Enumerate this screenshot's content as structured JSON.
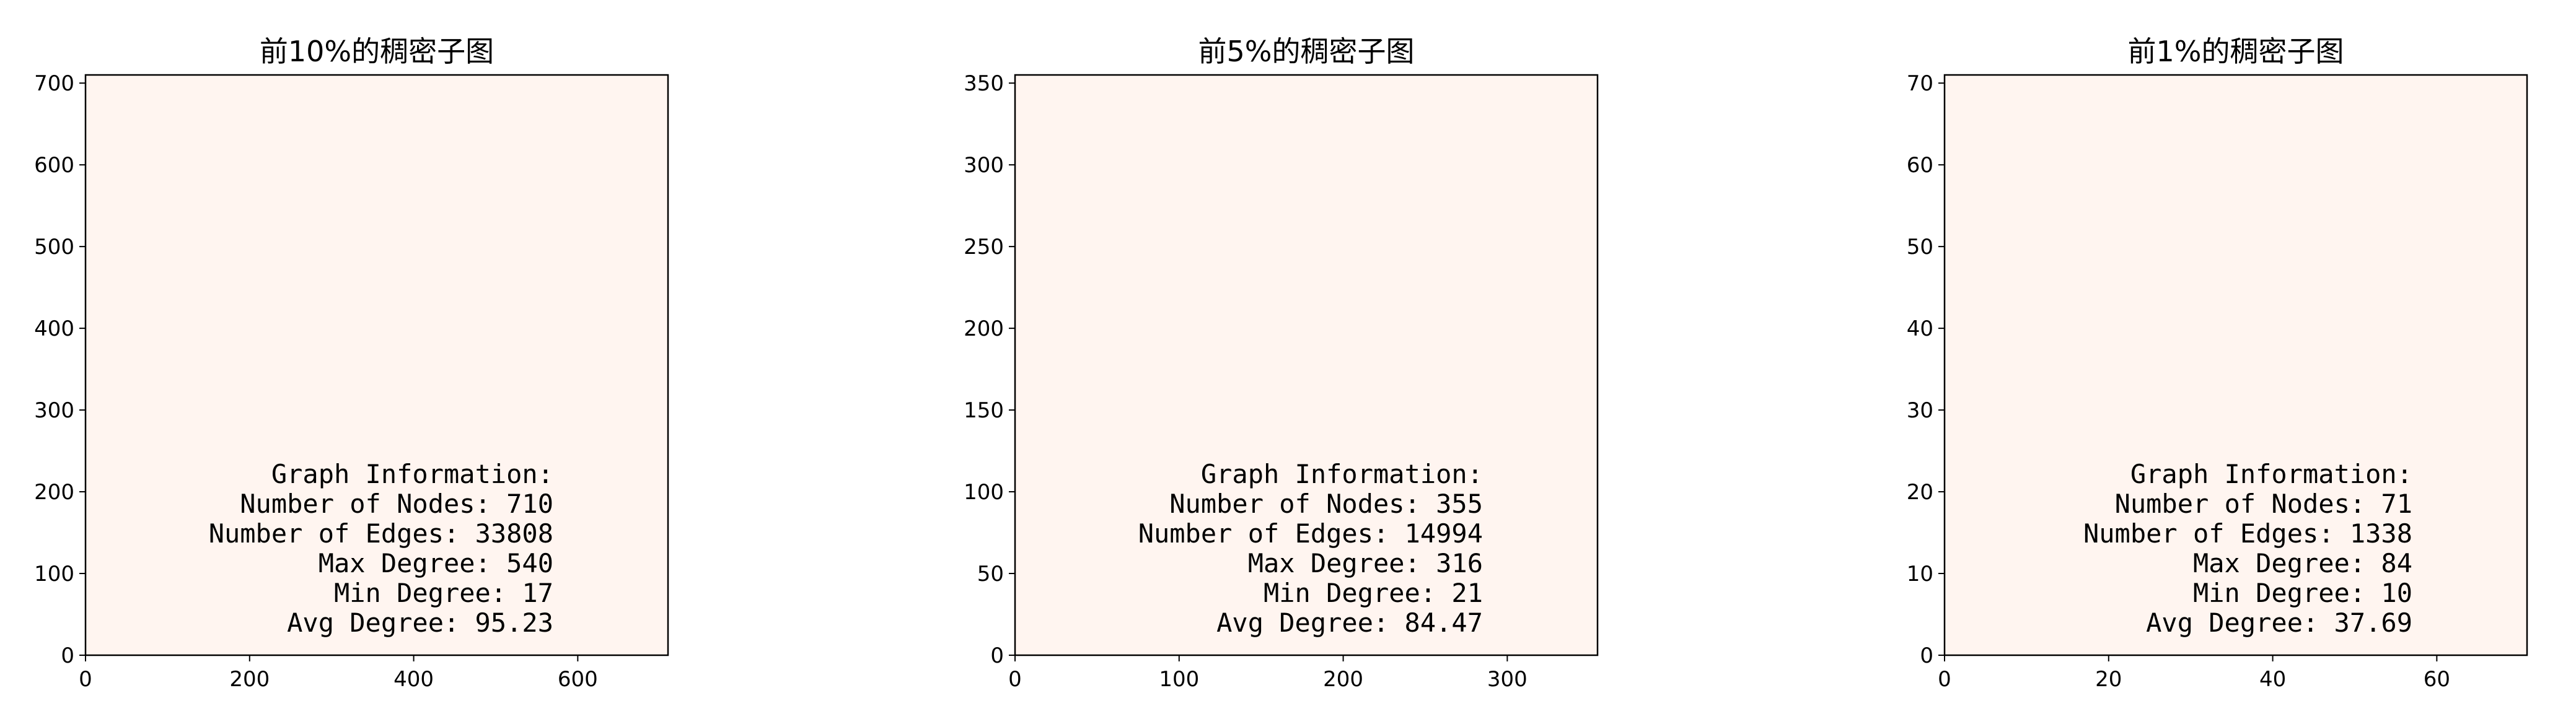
{
  "chart_data": [
    {
      "type": "heatmap",
      "title": "前10%的稠密子图",
      "xlim": [
        0,
        710
      ],
      "ylim": [
        0,
        710
      ],
      "xticks": [
        0,
        200,
        400,
        600
      ],
      "yticks": [
        0,
        100,
        200,
        300,
        400,
        500,
        600,
        700
      ],
      "fill_color": "#fff5f0",
      "info_lines": [
        "Graph Information:",
        "Number of Nodes: 710",
        "Number of Edges: 33808",
        "Max Degree: 540",
        "Min Degree: 17",
        "Avg Degree: 95.23"
      ]
    },
    {
      "type": "heatmap",
      "title": "前5%的稠密子图",
      "xlim": [
        0,
        355
      ],
      "ylim": [
        0,
        355
      ],
      "xticks": [
        0,
        100,
        200,
        300
      ],
      "yticks": [
        0,
        50,
        100,
        150,
        200,
        250,
        300,
        350
      ],
      "fill_color": "#fff5f0",
      "info_lines": [
        "Graph Information:",
        "Number of Nodes: 355",
        "Number of Edges: 14994",
        "Max Degree: 316",
        "Min Degree: 21",
        "Avg Degree: 84.47"
      ]
    },
    {
      "type": "heatmap",
      "title": "前1%的稠密子图",
      "xlim": [
        0,
        71
      ],
      "ylim": [
        0,
        71
      ],
      "xticks": [
        0,
        20,
        40,
        60
      ],
      "yticks": [
        0,
        10,
        20,
        30,
        40,
        50,
        60,
        70
      ],
      "fill_color": "#fff5f0",
      "info_lines": [
        "Graph Information:",
        "Number of Nodes: 71",
        "Number of Edges: 1338",
        "Max Degree: 84",
        "Min Degree: 10",
        "Avg Degree: 37.69"
      ]
    }
  ]
}
